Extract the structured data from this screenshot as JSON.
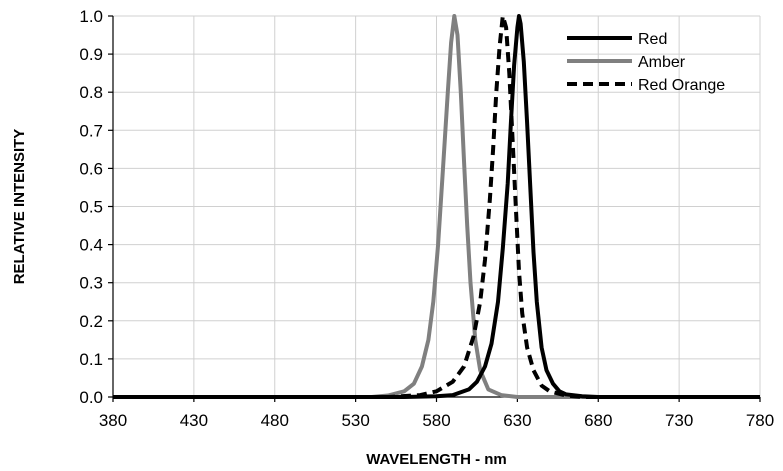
{
  "chart_data": {
    "type": "line",
    "title": "",
    "xlabel": "WAVELENGTH - nm",
    "ylabel": "RELATIVE INTENSITY",
    "xlim": [
      380,
      780
    ],
    "ylim": [
      0,
      1.0
    ],
    "x_ticks": [
      "380",
      "430",
      "480",
      "530",
      "580",
      "630",
      "680",
      "730",
      "780"
    ],
    "y_ticks": [
      "0.0",
      "0.1",
      "0.2",
      "0.3",
      "0.4",
      "0.5",
      "0.6",
      "0.7",
      "0.8",
      "0.9",
      "1.0"
    ],
    "grid": true,
    "legend": {
      "position": "top-right"
    },
    "series": [
      {
        "name": "Red",
        "color": "#000000",
        "dash": "solid",
        "points": [
          [
            380,
            0
          ],
          [
            560,
            0
          ],
          [
            580,
            0.002
          ],
          [
            590,
            0.005
          ],
          [
            600,
            0.02
          ],
          [
            605,
            0.04
          ],
          [
            610,
            0.08
          ],
          [
            614,
            0.14
          ],
          [
            618,
            0.25
          ],
          [
            621,
            0.39
          ],
          [
            624,
            0.56
          ],
          [
            626,
            0.72
          ],
          [
            628,
            0.87
          ],
          [
            630,
            0.97
          ],
          [
            631,
            1.0
          ],
          [
            632,
            0.98
          ],
          [
            634,
            0.88
          ],
          [
            636,
            0.72
          ],
          [
            638,
            0.55
          ],
          [
            640,
            0.38
          ],
          [
            642,
            0.25
          ],
          [
            645,
            0.13
          ],
          [
            648,
            0.07
          ],
          [
            652,
            0.035
          ],
          [
            656,
            0.015
          ],
          [
            660,
            0.007
          ],
          [
            670,
            0.002
          ],
          [
            680,
            0
          ],
          [
            780,
            0
          ]
        ]
      },
      {
        "name": "Amber",
        "color": "#808080",
        "dash": "solid",
        "points": [
          [
            380,
            0
          ],
          [
            540,
            0
          ],
          [
            550,
            0.004
          ],
          [
            560,
            0.015
          ],
          [
            566,
            0.035
          ],
          [
            571,
            0.08
          ],
          [
            575,
            0.15
          ],
          [
            578,
            0.25
          ],
          [
            581,
            0.4
          ],
          [
            584,
            0.6
          ],
          [
            587,
            0.8
          ],
          [
            589,
            0.93
          ],
          [
            591,
            1.0
          ],
          [
            593,
            0.95
          ],
          [
            595,
            0.8
          ],
          [
            597,
            0.62
          ],
          [
            599,
            0.45
          ],
          [
            601,
            0.3
          ],
          [
            604,
            0.15
          ],
          [
            607,
            0.07
          ],
          [
            612,
            0.02
          ],
          [
            620,
            0.005
          ],
          [
            630,
            0
          ],
          [
            780,
            0
          ]
        ]
      },
      {
        "name": "Red Orange",
        "color": "#000000",
        "dash": "dashed",
        "points": [
          [
            380,
            0
          ],
          [
            550,
            0
          ],
          [
            570,
            0.005
          ],
          [
            580,
            0.015
          ],
          [
            590,
            0.04
          ],
          [
            597,
            0.08
          ],
          [
            603,
            0.16
          ],
          [
            607,
            0.25
          ],
          [
            610,
            0.36
          ],
          [
            613,
            0.52
          ],
          [
            615,
            0.65
          ],
          [
            617,
            0.8
          ],
          [
            619,
            0.92
          ],
          [
            621,
            1.0
          ],
          [
            623,
            0.97
          ],
          [
            625,
            0.85
          ],
          [
            627,
            0.68
          ],
          [
            629,
            0.5
          ],
          [
            631,
            0.33
          ],
          [
            633,
            0.22
          ],
          [
            636,
            0.13
          ],
          [
            640,
            0.07
          ],
          [
            645,
            0.03
          ],
          [
            650,
            0.015
          ],
          [
            660,
            0.004
          ],
          [
            670,
            0
          ],
          [
            780,
            0
          ]
        ]
      }
    ]
  }
}
